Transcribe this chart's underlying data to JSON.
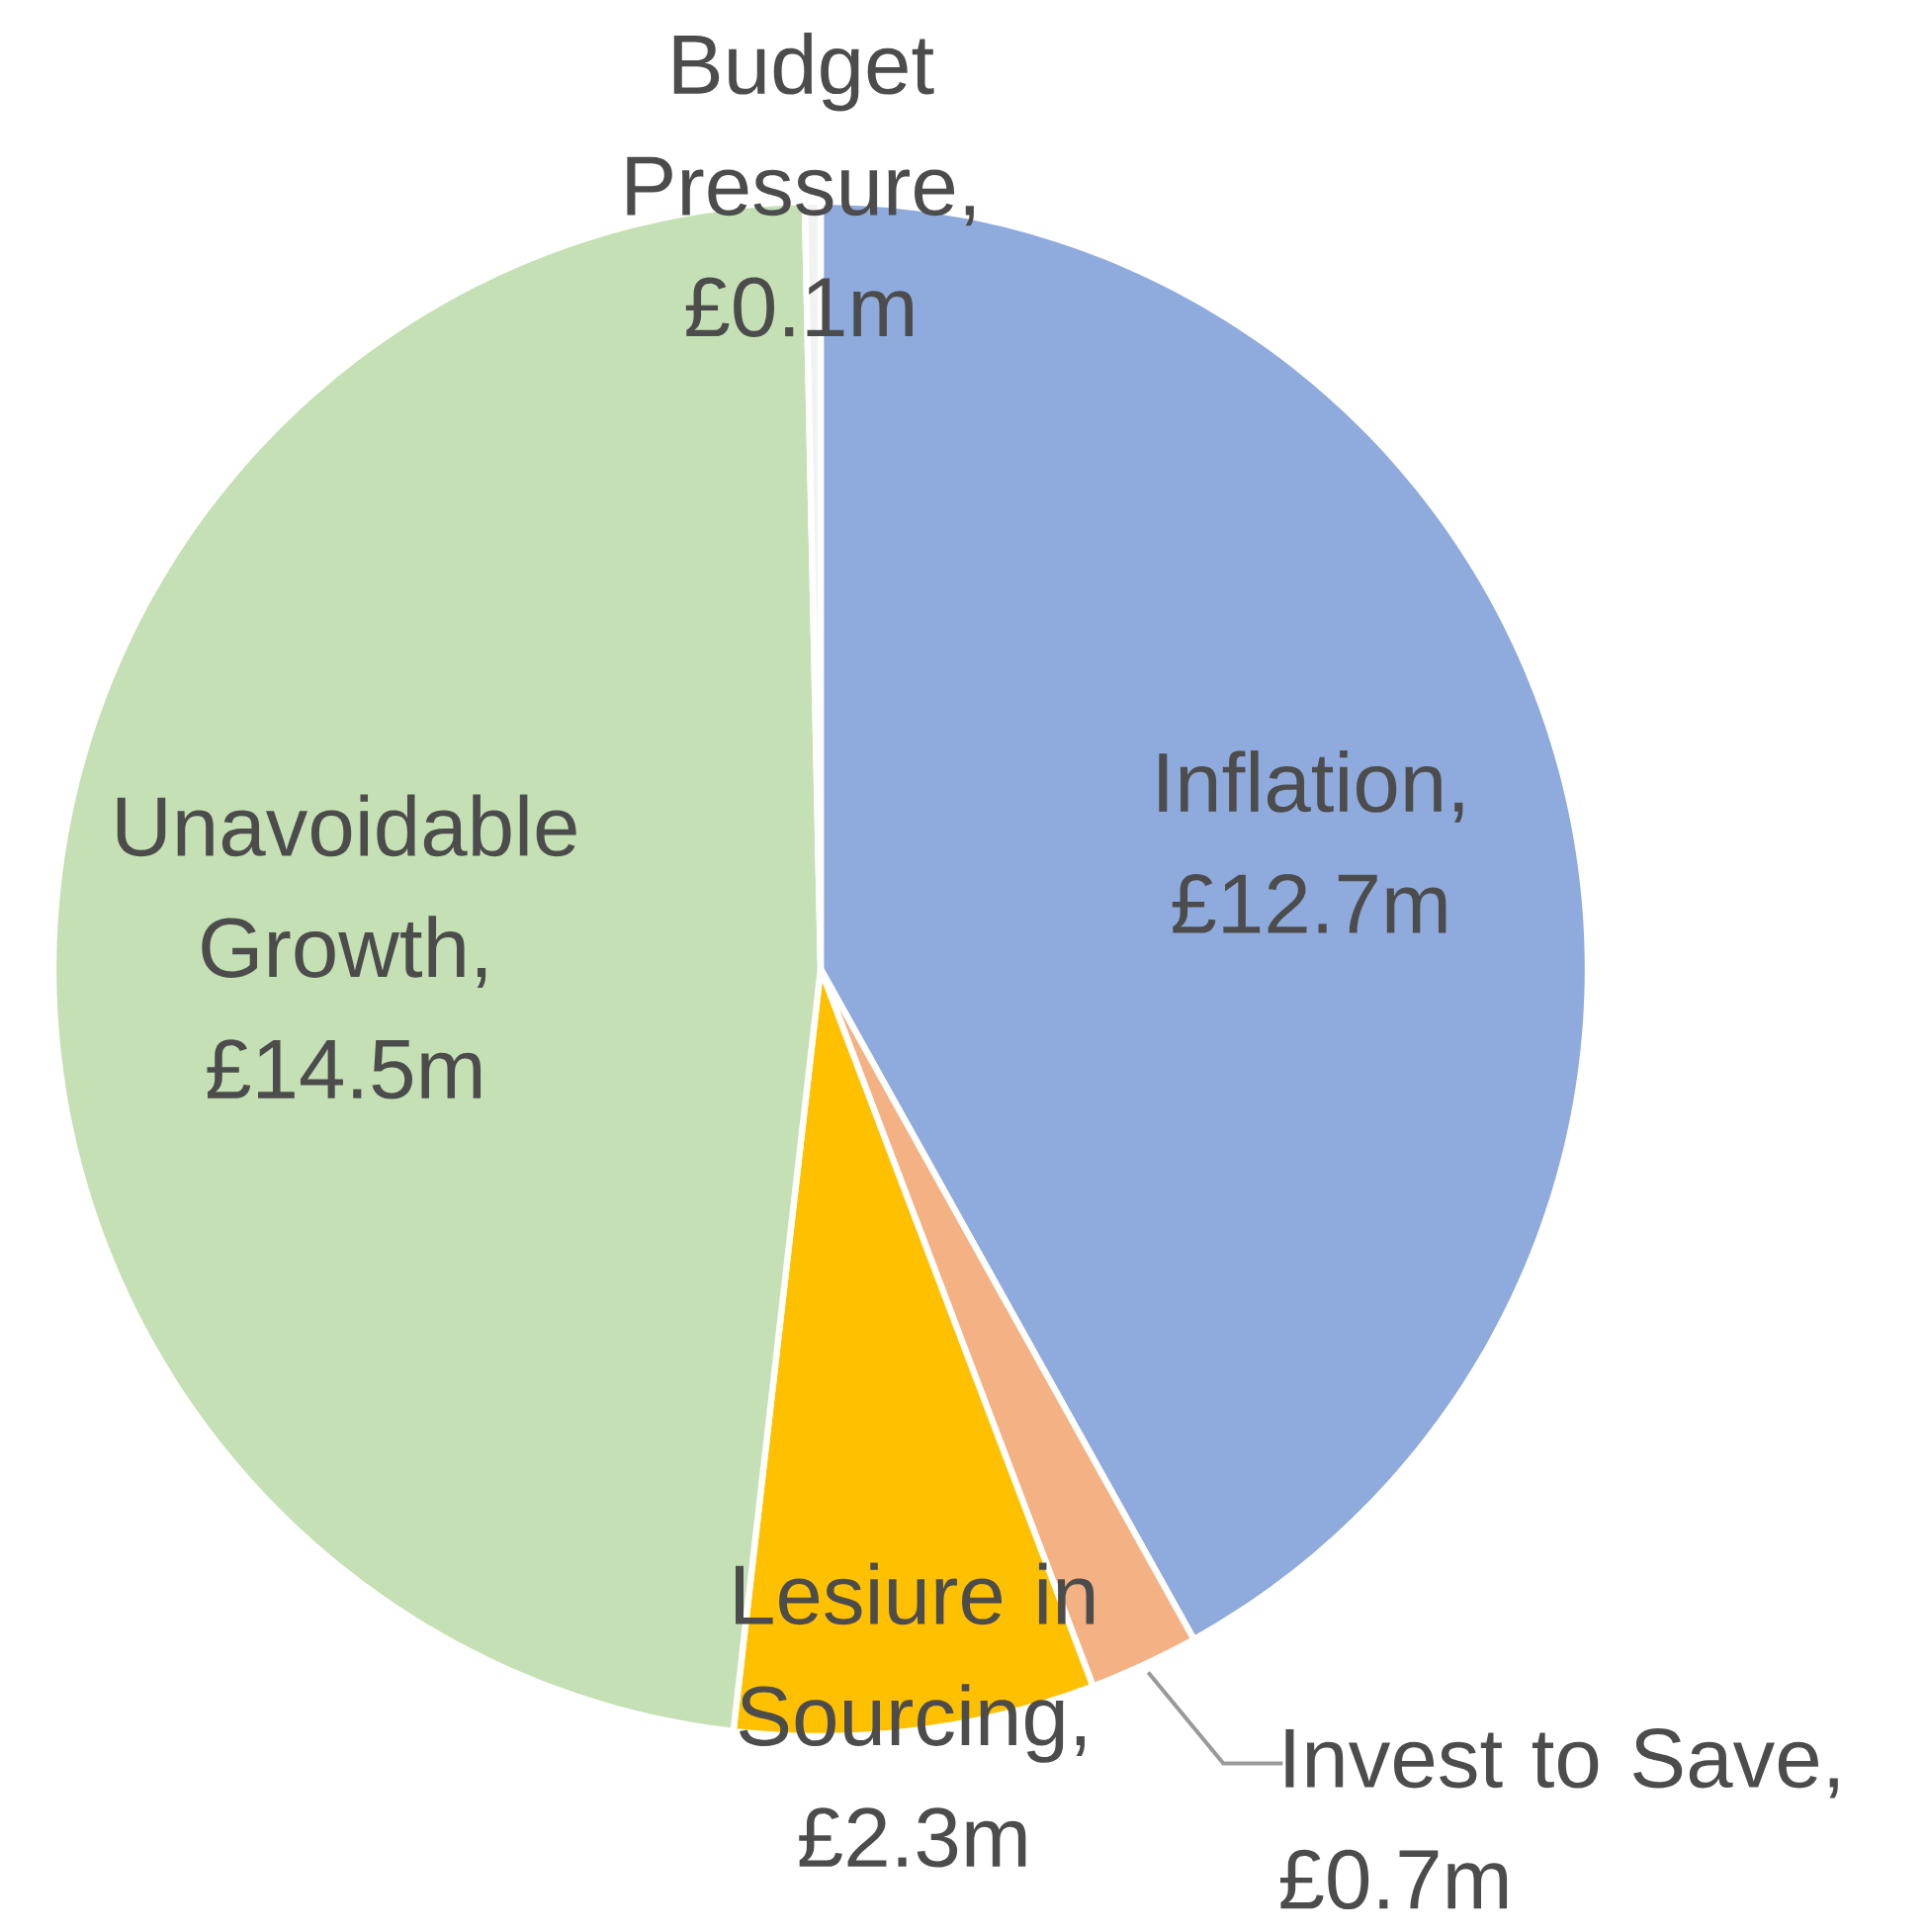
{
  "chart_data": {
    "type": "pie",
    "categories": [
      "Inflation",
      "Invest to Save",
      "Lesiure in Sourcing",
      "Unavoidable Growth",
      "Budget Pressure"
    ],
    "values": [
      12.7,
      0.7,
      2.3,
      14.5,
      0.1
    ],
    "colors": [
      "#8faadc",
      "#f4b183",
      "#ffc000",
      "#c5e0b4",
      "#f2f2f2"
    ],
    "value_labels": [
      ", £12.7m",
      ", £0.7m",
      ", £2.3m",
      ", £14.5m",
      ", £0.1m"
    ]
  }
}
